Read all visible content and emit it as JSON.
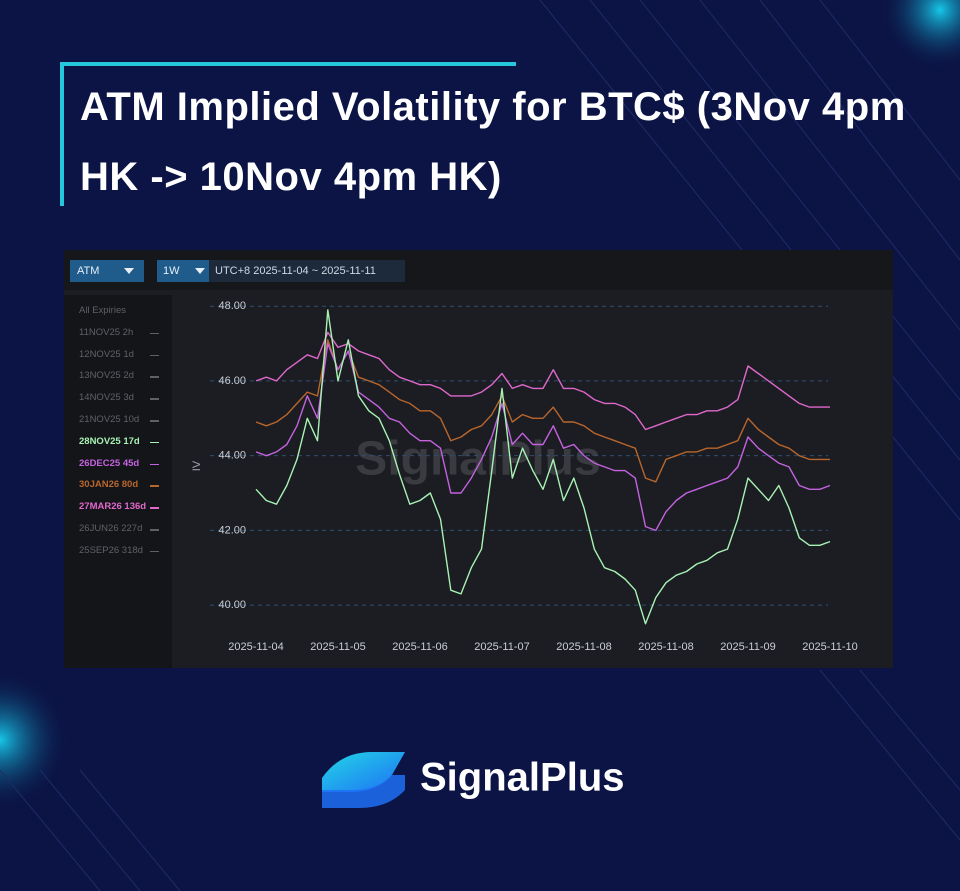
{
  "chart_data": {
    "type": "line",
    "title": "ATM Implied Volatility for BTC$ (3Nov 4pm HK -> 10Nov 4pm HK)",
    "toolbar": {
      "metric": "ATM",
      "period": "1W",
      "range": "UTC+8 2025-11-04 ~ 2025-11-11"
    },
    "expiry_list": {
      "heading": "All Expiries",
      "before": [
        "11NOV25 2h",
        "12NOV25 1d",
        "13NOV25 2d",
        "14NOV25 3d",
        "21NOV25 10d"
      ],
      "after": [
        "26JUN26 227d",
        "25SEP26 318d"
      ]
    },
    "y_label": "IV",
    "watermark": "SignalPlus",
    "categories": [
      "2025-11-04",
      null,
      null,
      null,
      null,
      null,
      null,
      null,
      "2025-11-05",
      null,
      null,
      null,
      null,
      null,
      null,
      null,
      "2025-11-06",
      null,
      null,
      null,
      null,
      null,
      null,
      null,
      "2025-11-07",
      null,
      null,
      null,
      null,
      null,
      null,
      null,
      "2025-11-08",
      null,
      null,
      null,
      null,
      null,
      null,
      null,
      "2025-11-08",
      null,
      null,
      null,
      null,
      null,
      null,
      null,
      "2025-11-09",
      null,
      null,
      null,
      null,
      null,
      null,
      null,
      "2025-11-10"
    ],
    "ylim": [
      39.2,
      48.3
    ],
    "yticks": [
      {
        "value": 40,
        "label": "40.00"
      },
      {
        "value": 42,
        "label": "42.00"
      },
      {
        "value": 44,
        "label": "44.00"
      },
      {
        "value": 46,
        "label": "46.00"
      },
      {
        "value": 48,
        "label": "48.00"
      }
    ],
    "grid": true,
    "series": [
      {
        "name": "28NOV25 17d",
        "color": "#a8f2b4",
        "values": [
          43.1,
          42.8,
          42.7,
          43.2,
          43.9,
          45.0,
          44.4,
          47.9,
          46.0,
          47.1,
          45.6,
          45.2,
          45.0,
          44.4,
          43.5,
          42.7,
          42.8,
          43.0,
          42.3,
          40.4,
          40.3,
          41.0,
          41.5,
          43.6,
          45.8,
          43.4,
          44.2,
          43.6,
          43.1,
          43.9,
          42.8,
          43.4,
          42.6,
          41.5,
          41.0,
          40.9,
          40.7,
          40.4,
          39.5,
          40.2,
          40.6,
          40.8,
          40.9,
          41.1,
          41.2,
          41.4,
          41.5,
          42.3,
          43.4,
          43.1,
          42.8,
          43.2,
          42.6,
          41.8,
          41.6,
          41.6,
          41.7
        ]
      },
      {
        "name": "26DEC25 45d",
        "color": "#c462e0",
        "values": [
          44.1,
          44.0,
          44.1,
          44.3,
          44.8,
          45.6,
          45.0,
          47.0,
          46.3,
          46.8,
          45.7,
          45.5,
          45.3,
          45.0,
          44.9,
          44.6,
          44.4,
          44.4,
          44.2,
          43.0,
          43.0,
          43.4,
          43.9,
          44.5,
          45.4,
          44.3,
          44.6,
          44.3,
          44.3,
          44.8,
          44.2,
          44.3,
          44.0,
          43.8,
          43.7,
          43.6,
          43.6,
          43.4,
          42.1,
          42.0,
          42.5,
          42.8,
          43.0,
          43.1,
          43.2,
          43.3,
          43.4,
          43.7,
          44.5,
          44.2,
          44.0,
          43.8,
          43.7,
          43.2,
          43.1,
          43.1,
          43.2
        ]
      },
      {
        "name": "30JAN26 80d",
        "color": "#b9662c",
        "values": [
          44.9,
          44.8,
          44.9,
          45.1,
          45.4,
          45.7,
          45.6,
          47.1,
          46.3,
          46.8,
          46.1,
          46.0,
          45.9,
          45.7,
          45.5,
          45.4,
          45.2,
          45.2,
          45.0,
          44.4,
          44.5,
          44.7,
          44.8,
          45.1,
          45.6,
          44.9,
          45.1,
          45.0,
          45.0,
          45.3,
          44.9,
          44.9,
          44.8,
          44.6,
          44.5,
          44.4,
          44.3,
          44.2,
          43.4,
          43.3,
          43.9,
          44.0,
          44.1,
          44.1,
          44.2,
          44.2,
          44.3,
          44.4,
          45.0,
          44.7,
          44.5,
          44.3,
          44.2,
          44.0,
          43.9,
          43.9,
          43.9
        ]
      },
      {
        "name": "27MAR26 136d",
        "color": "#e068cc",
        "values": [
          46.0,
          46.1,
          46.0,
          46.3,
          46.5,
          46.7,
          46.6,
          47.3,
          46.9,
          47.0,
          46.8,
          46.7,
          46.6,
          46.3,
          46.1,
          46.0,
          45.9,
          45.9,
          45.8,
          45.6,
          45.6,
          45.6,
          45.7,
          45.9,
          46.2,
          45.8,
          45.9,
          45.8,
          45.8,
          46.3,
          45.8,
          45.8,
          45.7,
          45.5,
          45.4,
          45.4,
          45.3,
          45.1,
          44.7,
          44.8,
          44.9,
          45.0,
          45.1,
          45.1,
          45.2,
          45.2,
          45.3,
          45.5,
          46.4,
          46.2,
          46.0,
          45.8,
          45.6,
          45.4,
          45.3,
          45.3,
          45.3
        ]
      }
    ]
  },
  "brand": "SignalPlus"
}
